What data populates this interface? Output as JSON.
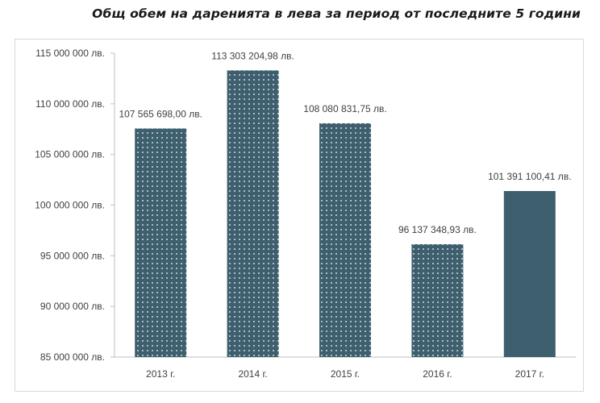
{
  "chart_data": {
    "type": "bar",
    "title": "Общ обем на даренията в лева за период от последните 5 години",
    "categories": [
      "2013 г.",
      "2014 г.",
      "2015 г.",
      "2016 г.",
      "2017 г."
    ],
    "values": [
      107565698.0,
      113303204.98,
      108080831.75,
      96137348.93,
      101391100.41
    ],
    "value_labels": [
      "107 565 698,00 лв.",
      "113 303 204,98 лв.",
      "108 080 831,75 лв.",
      "96 137 348,93 лв.",
      "101 391 100,41 лв."
    ],
    "ylim": [
      85000000,
      115000000
    ],
    "yticks": [
      85000000,
      90000000,
      95000000,
      100000000,
      105000000,
      110000000,
      115000000
    ],
    "ytick_labels": [
      "85 000 000 лв.",
      "90 000 000 лв.",
      "95 000 000 лв.",
      "100 000 000 лв.",
      "105 000 000 лв.",
      "110 000 000 лв.",
      "115 000 000 лв."
    ],
    "xlabel": "",
    "ylabel": "",
    "grid": false,
    "legend": "none",
    "bar_color": "#3d5f6e",
    "pattern_dot_color": "#ffffff",
    "patterned_bars": [
      true,
      true,
      true,
      true,
      false
    ]
  }
}
